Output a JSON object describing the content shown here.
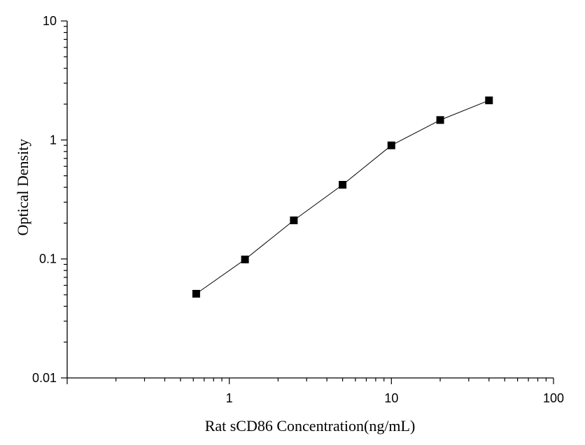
{
  "chart_data": {
    "type": "line",
    "xlabel": "Rat sCD86 Concentration(ng/mL)",
    "ylabel": "Optical Density",
    "x_scale": "log",
    "y_scale": "log",
    "xlim": [
      0.1,
      100
    ],
    "ylim": [
      0.01,
      10
    ],
    "x_ticks": [
      1,
      10,
      100
    ],
    "x_tick_labels": [
      "1",
      "10",
      "100"
    ],
    "y_ticks": [
      0.01,
      0.1,
      1,
      10
    ],
    "y_tick_labels": [
      "0.01",
      "0.1",
      "1",
      "10"
    ],
    "grid": false,
    "legend": "none",
    "marker": "square",
    "series": [
      {
        "x": [
          0.625,
          1.25,
          2.5,
          5,
          10,
          20,
          40
        ],
        "y": [
          0.051,
          0.099,
          0.211,
          0.42,
          0.9,
          1.47,
          2.15
        ],
        "color": "#000000"
      }
    ]
  }
}
